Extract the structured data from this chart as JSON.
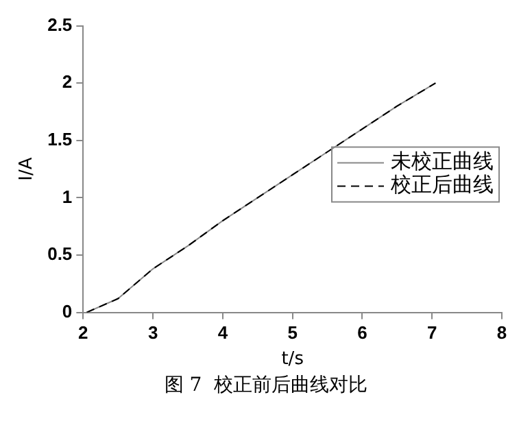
{
  "chart_data": {
    "type": "line",
    "xlabel": "t/s",
    "ylabel": "I/A",
    "annotations": [
      "图 7  校正前后曲线对比"
    ],
    "xlim": [
      2,
      8
    ],
    "xticks": [
      2,
      3,
      4,
      5,
      6,
      7,
      8
    ],
    "ylim": [
      0,
      2.5
    ],
    "yticks": [
      0,
      0.5,
      1,
      1.5,
      2,
      2.5
    ],
    "grid": false,
    "legend": "right",
    "marker": "none",
    "series": [
      {
        "name": "未校正曲线",
        "color": "#888888",
        "line_style": "solid",
        "x": [
          2.05,
          2.5,
          3,
          3.5,
          4,
          4.5,
          5,
          5.5,
          6,
          6.5,
          7.05
        ],
        "values": [
          0,
          0.12,
          0.38,
          0.58,
          0.8,
          1.0,
          1.2,
          1.4,
          1.6,
          1.8,
          2.0
        ]
      },
      {
        "name": "校正后曲线",
        "color": "#000000",
        "line_style": "dashed",
        "x": [
          2.05,
          2.5,
          3,
          3.5,
          4,
          4.5,
          5,
          5.5,
          6,
          6.5,
          7.05
        ],
        "values": [
          0,
          0.12,
          0.38,
          0.58,
          0.8,
          1.0,
          1.2,
          1.4,
          1.6,
          1.8,
          2.0
        ]
      }
    ]
  }
}
